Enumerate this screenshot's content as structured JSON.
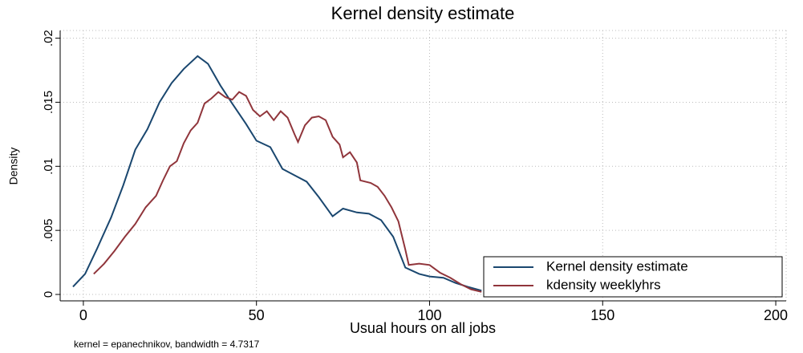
{
  "chart_data": {
    "type": "line",
    "title": "Kernel density estimate",
    "x_label": "Usual hours on all jobs",
    "y_label": "Density",
    "note": "kernel = epanechnikov, bandwidth = 4.7317",
    "xlim": [
      -6.7,
      203
    ],
    "ylim": [
      -0.0005,
      0.0206
    ],
    "xticks": [
      0,
      50,
      100,
      150,
      200
    ],
    "yticks": [
      0,
      {
        "value": 0.005,
        "label": ".005"
      },
      {
        "value": 0.01,
        "label": ".01"
      },
      {
        "value": 0.015,
        "label": ".015"
      },
      {
        "value": 0.02,
        "label": ".02"
      }
    ],
    "grid": true,
    "legend": "lower right",
    "series": [
      {
        "name": "Kernel density estimate",
        "color": "#1a476f",
        "x": [
          -3,
          0.5,
          4,
          8,
          11.5,
          15,
          18.5,
          22,
          25.5,
          29,
          33,
          36,
          39.6,
          43,
          47,
          50,
          54,
          57.5,
          61,
          64.5,
          68,
          72,
          75,
          79,
          82.5,
          86,
          89.5,
          93,
          97,
          100,
          104,
          107.5,
          111,
          115
        ],
        "values": [
          0.0006,
          0.0016,
          0.0036,
          0.006,
          0.0085,
          0.0113,
          0.0129,
          0.015,
          0.0165,
          0.0176,
          0.0186,
          0.018,
          0.0163,
          0.0149,
          0.0133,
          0.012,
          0.0115,
          0.0098,
          0.0093,
          0.0088,
          0.0076,
          0.0061,
          0.0067,
          0.0064,
          0.0063,
          0.0058,
          0.0045,
          0.0021,
          0.0016,
          0.0014,
          0.0013,
          0.0009,
          0.0006,
          0.0003
        ]
      },
      {
        "name": "kdensity weeklyhrs",
        "color": "#90353b",
        "x": [
          3,
          6,
          9,
          12,
          15,
          18,
          21,
          23,
          25,
          27,
          29,
          31,
          33,
          35,
          37,
          39,
          41,
          43,
          45,
          47,
          49,
          51,
          53,
          55,
          57,
          59,
          61,
          62,
          64,
          66,
          68,
          70,
          72,
          74,
          75,
          77,
          79,
          80,
          83,
          85,
          87,
          89,
          91,
          93,
          94,
          97,
          100,
          103,
          106,
          109,
          112,
          115
        ],
        "values": [
          0.0016,
          0.0024,
          0.0034,
          0.0045,
          0.0055,
          0.0068,
          0.0077,
          0.0089,
          0.01,
          0.0104,
          0.0118,
          0.0128,
          0.0134,
          0.0149,
          0.0153,
          0.0158,
          0.0154,
          0.0152,
          0.0158,
          0.0155,
          0.0144,
          0.0139,
          0.0143,
          0.0136,
          0.0143,
          0.0138,
          0.0125,
          0.0119,
          0.0132,
          0.0138,
          0.0139,
          0.0136,
          0.0123,
          0.0117,
          0.0107,
          0.0111,
          0.0103,
          0.0089,
          0.0087,
          0.0084,
          0.0077,
          0.0068,
          0.0057,
          0.0035,
          0.0023,
          0.0024,
          0.0023,
          0.0017,
          0.0013,
          0.0008,
          0.0004,
          0.0002
        ]
      }
    ]
  }
}
